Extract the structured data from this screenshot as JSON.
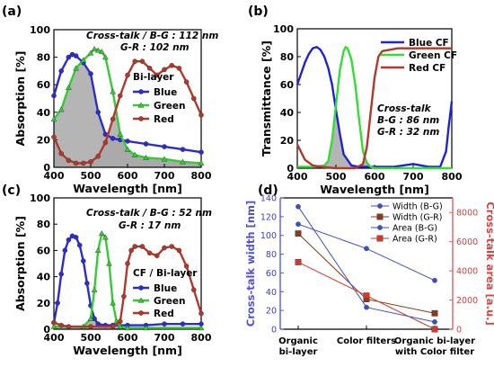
{
  "chart_data": [
    {
      "panel": "(a)",
      "type": "line",
      "xlabel": "Wavelength [nm]",
      "ylabel": "Absorption [%]",
      "xlim": [
        400,
        800
      ],
      "ylim": [
        0,
        100
      ],
      "xticks": [
        400,
        500,
        600,
        700,
        800
      ],
      "yticks": [
        0,
        20,
        40,
        60,
        80,
        100
      ],
      "annotations": [
        "Cross-talk / B-G : 112 nm",
        "G-R : 102 nm"
      ],
      "legend_title": "Bi-layer",
      "legend_position": "center-right",
      "overlap_fill": "gray",
      "series": [
        {
          "name": "Blue",
          "color": "#2a2ad8",
          "marker": "circle",
          "x": [
            400,
            420,
            440,
            450,
            460,
            480,
            500,
            520,
            540,
            560,
            580,
            600,
            650,
            700,
            750,
            800
          ],
          "y": [
            52,
            70,
            80,
            82,
            81,
            76,
            68,
            40,
            24,
            21,
            20,
            19,
            17,
            15,
            13,
            11
          ]
        },
        {
          "name": "Green",
          "color": "#33cc33",
          "marker": "triangle",
          "x": [
            400,
            420,
            440,
            460,
            480,
            500,
            510,
            520,
            530,
            540,
            560,
            580,
            600,
            620,
            650,
            700,
            750,
            800
          ],
          "y": [
            35,
            42,
            58,
            72,
            78,
            83,
            86,
            85,
            84,
            80,
            55,
            24,
            13,
            9,
            7,
            6,
            4,
            3
          ]
        },
        {
          "name": "Red",
          "color": "#b3382b",
          "marker": "circle",
          "x": [
            400,
            420,
            440,
            460,
            480,
            500,
            520,
            540,
            560,
            580,
            600,
            620,
            640,
            660,
            680,
            700,
            720,
            740,
            760,
            780,
            800
          ],
          "y": [
            22,
            10,
            5,
            3,
            3,
            4,
            8,
            18,
            35,
            52,
            67,
            77,
            77,
            72,
            67,
            71,
            74,
            72,
            62,
            50,
            38
          ]
        }
      ]
    },
    {
      "panel": "(b)",
      "type": "line",
      "xlabel": "Wavelength [nm]",
      "ylabel": "Transmittance [%]",
      "xlim": [
        400,
        800
      ],
      "ylim": [
        0,
        100
      ],
      "xticks": [
        400,
        500,
        600,
        700,
        800
      ],
      "yticks": [
        0,
        20,
        40,
        60,
        80,
        100
      ],
      "annotations": [
        "Cross-talk",
        "B-G : 86 nm",
        "G-R : 32 nm"
      ],
      "legend_position": "upper-right",
      "overlap_fill": "gray",
      "series": [
        {
          "name": "Blue CF",
          "color": "#1f22d8",
          "x": [
            400,
            410,
            420,
            430,
            440,
            450,
            460,
            470,
            480,
            490,
            500,
            510,
            520,
            540,
            560,
            600,
            650,
            700,
            740,
            770,
            785,
            792,
            800
          ],
          "y": [
            60,
            68,
            76,
            82,
            86,
            87,
            85,
            80,
            72,
            60,
            42,
            25,
            10,
            2,
            1,
            1,
            1,
            3,
            1,
            1,
            12,
            30,
            48
          ]
        },
        {
          "name": "Green CF",
          "color": "#33dd33",
          "x": [
            400,
            440,
            470,
            480,
            490,
            500,
            510,
            520,
            525,
            530,
            540,
            550,
            560,
            570,
            580,
            590,
            600,
            650,
            800
          ],
          "y": [
            1,
            1,
            2,
            5,
            20,
            45,
            70,
            84,
            87,
            86,
            78,
            60,
            35,
            12,
            4,
            1,
            0,
            0,
            0
          ]
        },
        {
          "name": "Red CF",
          "color": "#b3382b",
          "x": [
            400,
            420,
            440,
            460,
            500,
            550,
            570,
            580,
            590,
            600,
            610,
            620,
            640,
            660,
            700,
            750,
            800
          ],
          "y": [
            17,
            6,
            2,
            1,
            0,
            0,
            3,
            15,
            40,
            65,
            80,
            84,
            85,
            86,
            86,
            86,
            86
          ]
        }
      ]
    },
    {
      "panel": "(c)",
      "type": "line",
      "xlabel": "Wavelength [nm]",
      "ylabel": "Absorption [%]",
      "xlim": [
        400,
        800
      ],
      "ylim": [
        0,
        100
      ],
      "xticks": [
        400,
        500,
        600,
        700,
        800
      ],
      "yticks": [
        0,
        20,
        40,
        60,
        80,
        100
      ],
      "annotations": [
        "Cross-talk / B-G : 52 nm",
        "G-R : 17 nm"
      ],
      "legend_title": "CF / Bi-layer",
      "legend_position": "lower-right",
      "overlap_fill": "gray",
      "series": [
        {
          "name": "Blue",
          "color": "#2a2ad8",
          "marker": "circle",
          "x": [
            400,
            410,
            420,
            430,
            440,
            450,
            460,
            470,
            480,
            490,
            500,
            510,
            520,
            540,
            560,
            600,
            650,
            700,
            750,
            800
          ],
          "y": [
            5,
            20,
            42,
            60,
            68,
            71,
            70,
            64,
            52,
            35,
            18,
            8,
            4,
            3,
            3,
            3,
            3,
            4,
            4,
            4
          ]
        },
        {
          "name": "Green",
          "color": "#33cc33",
          "marker": "triangle",
          "x": [
            400,
            480,
            500,
            510,
            520,
            530,
            540,
            550,
            560,
            570,
            580,
            600,
            650,
            800
          ],
          "y": [
            2,
            2,
            8,
            30,
            60,
            73,
            70,
            50,
            20,
            6,
            2,
            1,
            1,
            1
          ]
        },
        {
          "name": "Red",
          "color": "#b3382b",
          "marker": "circle",
          "x": [
            400,
            420,
            440,
            500,
            560,
            580,
            590,
            600,
            610,
            620,
            640,
            660,
            680,
            700,
            720,
            740,
            760,
            780,
            800
          ],
          "y": [
            5,
            3,
            2,
            2,
            2,
            6,
            25,
            50,
            60,
            63,
            63,
            58,
            56,
            62,
            63,
            60,
            48,
            30,
            12
          ]
        }
      ]
    },
    {
      "panel": "(d)",
      "type": "line",
      "categories": [
        "Organic bi-layer",
        "Color filters",
        "Organic bi-layer with Color filter"
      ],
      "ylabel": "Cross-talk width [nm]",
      "y2label": "Cross-talk area [a.u.]",
      "ylim": [
        0,
        140
      ],
      "y2lim": [
        0,
        9000
      ],
      "yticks": [
        0,
        20,
        40,
        60,
        80,
        100,
        120,
        140
      ],
      "y2ticks": [
        0,
        2000,
        4000,
        6000,
        8000
      ],
      "legend_position": "upper-right",
      "series": [
        {
          "name": "Width (B-G)",
          "axis": "left",
          "color": "#3b4fc8",
          "marker": "circle",
          "values": [
            112,
            86,
            52
          ]
        },
        {
          "name": "Width (G-R)",
          "axis": "left",
          "color": "#8b3a1e",
          "marker": "square",
          "values": [
            102,
            32,
            17
          ]
        },
        {
          "name": "Area (B-G)",
          "axis": "right",
          "color": "#3b4fc8",
          "marker": "circle",
          "values": [
            8400,
            1500,
            500
          ]
        },
        {
          "name": "Area (G-R)",
          "axis": "right",
          "color": "#d0392b",
          "marker": "square",
          "values": [
            4600,
            2300,
            0
          ]
        }
      ]
    }
  ]
}
